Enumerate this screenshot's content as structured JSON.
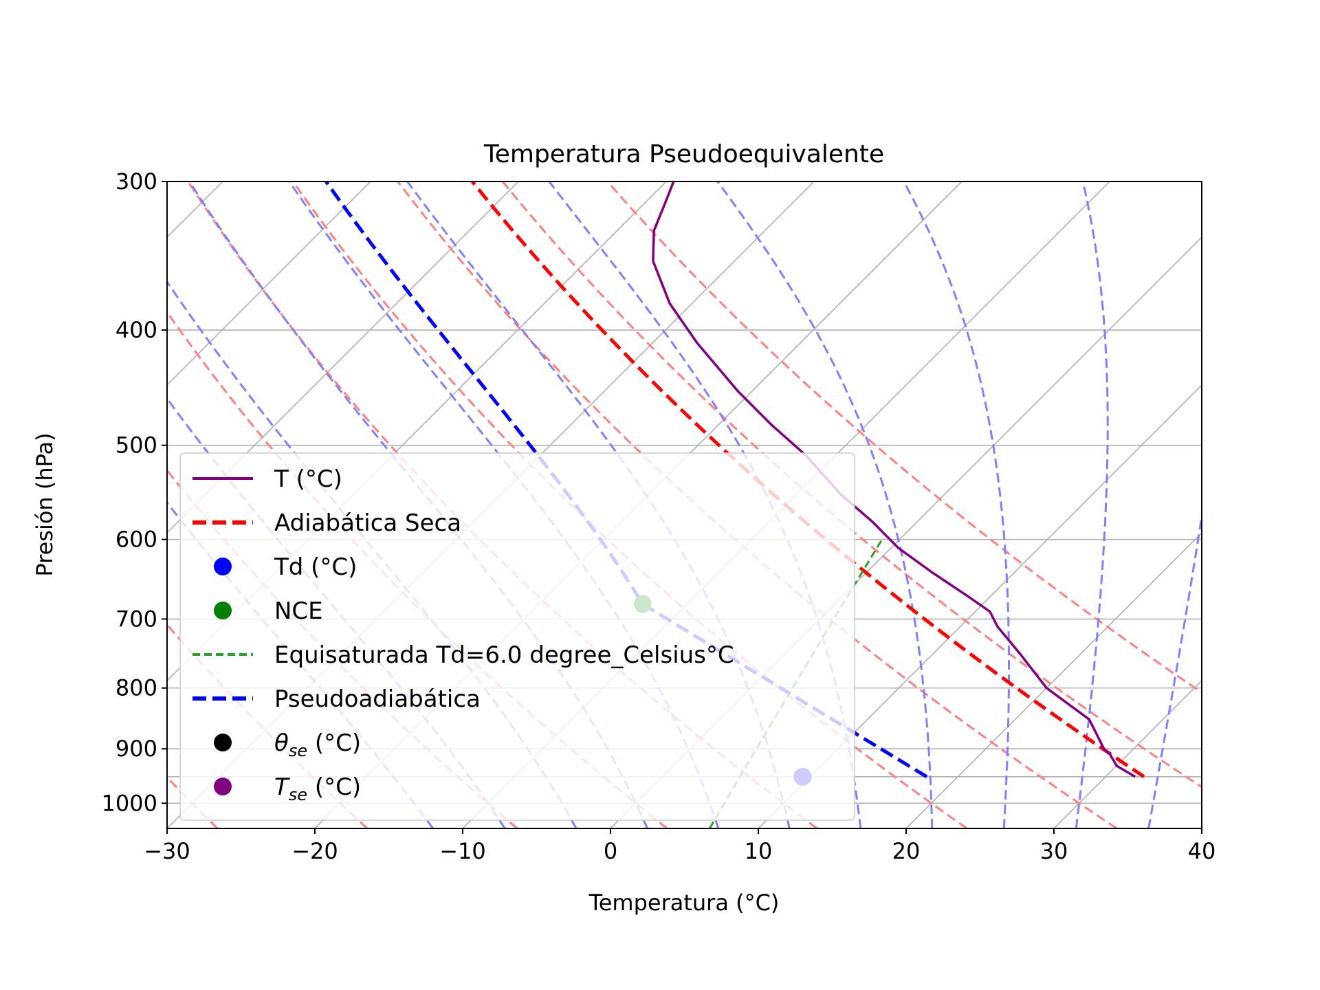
{
  "chart_data": {
    "type": "line",
    "title": "Temperatura Pseudoequivalente",
    "xlabel": "Temperatura (°C)",
    "ylabel": "Presión (hPa)",
    "xlim": [
      -30,
      40
    ],
    "ylim": [
      1050,
      300
    ],
    "y_scale": "log",
    "grid": true,
    "legend_position": "lower-left",
    "x_ticks": [
      -30,
      -20,
      -10,
      0,
      10,
      20,
      30,
      40
    ],
    "x_tick_labels": [
      "−30",
      "−20",
      "−10",
      "0",
      "10",
      "20",
      "30",
      "40"
    ],
    "y_ticks": [
      300,
      400,
      500,
      600,
      700,
      800,
      900,
      1000
    ],
    "y_tick_labels": [
      "300",
      "400",
      "500",
      "600",
      "700",
      "800",
      "900",
      "1000"
    ],
    "isotherms": [
      -90,
      -80,
      -70,
      -60,
      -50,
      -40,
      -30,
      -20,
      -10,
      0,
      10,
      20,
      30,
      40
    ],
    "isobars": [
      300,
      400,
      500,
      600,
      700,
      800,
      900,
      950,
      1000
    ],
    "background_dry_adiabats_theta_c": [
      -30,
      -20,
      -10,
      0,
      10,
      20,
      30,
      40,
      50
    ],
    "background_moist_adiabats_surface_temp_c": [
      -15,
      -10,
      -5,
      0,
      5,
      10,
      15,
      20,
      25,
      30,
      35,
      40
    ],
    "profile_temperature": {
      "pressure": [
        300,
        310,
        330,
        350,
        380,
        410,
        450,
        480,
        510,
        550,
        580,
        610,
        640,
        670,
        690,
        710,
        750,
        800,
        850,
        900,
        910,
        930,
        950
      ],
      "temperature": [
        -39.5,
        -38.8,
        -37.5,
        -35.5,
        -31.5,
        -27.0,
        -21.0,
        -16.5,
        -12.0,
        -7.0,
        -3.0,
        0.5,
        4.5,
        8.5,
        11.0,
        12.5,
        16.0,
        20.0,
        25.0,
        28.0,
        28.8,
        30.0,
        32.0
      ]
    },
    "dry_adiabat_from_surface": {
      "surface_pressure": 950,
      "surface_temperature": 32.6,
      "top_pressure": 300
    },
    "dry_adiabat_through_nce": {
      "surface_pressure": 950,
      "surface_temperature": 32.6,
      "top_pressure": 300
    },
    "td_point": {
      "pressure": 950,
      "temperature": 9.5
    },
    "nce_point": {
      "pressure": 680,
      "temperature": -13.0
    },
    "equisaturated_line": {
      "td": 6.0,
      "p_start": 1050,
      "p_end": 600
    },
    "pseudoadiabat": {
      "pressure": [
        950,
        880,
        800,
        680,
        600,
        510,
        450,
        400,
        350,
        300
      ],
      "temperature": [
        17.9,
        15.0,
        11.0,
        -13.0,
        -20.0,
        -29.0,
        -35.5,
        -41.5,
        -48.5,
        -56.5
      ]
    },
    "legend": [
      {
        "label": "T (°C)",
        "color": "#800080",
        "style": "solid"
      },
      {
        "label": "Adiabática Seca",
        "color": "#ff0000",
        "style": "dashed"
      },
      {
        "label": "Td (°C)",
        "color": "#0000ff",
        "style": "dot"
      },
      {
        "label": "NCE",
        "color": "#008000",
        "style": "dot"
      },
      {
        "label": "Equisaturada Td=6.0 degree_Celsius°C",
        "color": "#2ca02c",
        "style": "dashed-thin"
      },
      {
        "label": "Pseudoadiabática",
        "color": "#0000ff",
        "style": "dashed"
      },
      {
        "label": "θse (°C)",
        "label_main": "θ",
        "label_sub": "se",
        "label_rest": " (°C)",
        "color": "#000000",
        "style": "dot"
      },
      {
        "label": "Tse (°C)",
        "label_main": "T",
        "label_sub": "se",
        "label_rest": " (°C)",
        "color": "#800080",
        "style": "dot"
      }
    ],
    "colors": {
      "temperature": "#800080",
      "dry_adiabat": "#ff0000",
      "dry_adiabat_background": "#ff8080",
      "moist_adiabat_background": "#8080ff",
      "pseudoadiabat": "#0000ff",
      "equisaturated": "#2ca02c",
      "td": "#0000ff",
      "nce": "#008000",
      "grid": "#b0b0b0"
    }
  }
}
